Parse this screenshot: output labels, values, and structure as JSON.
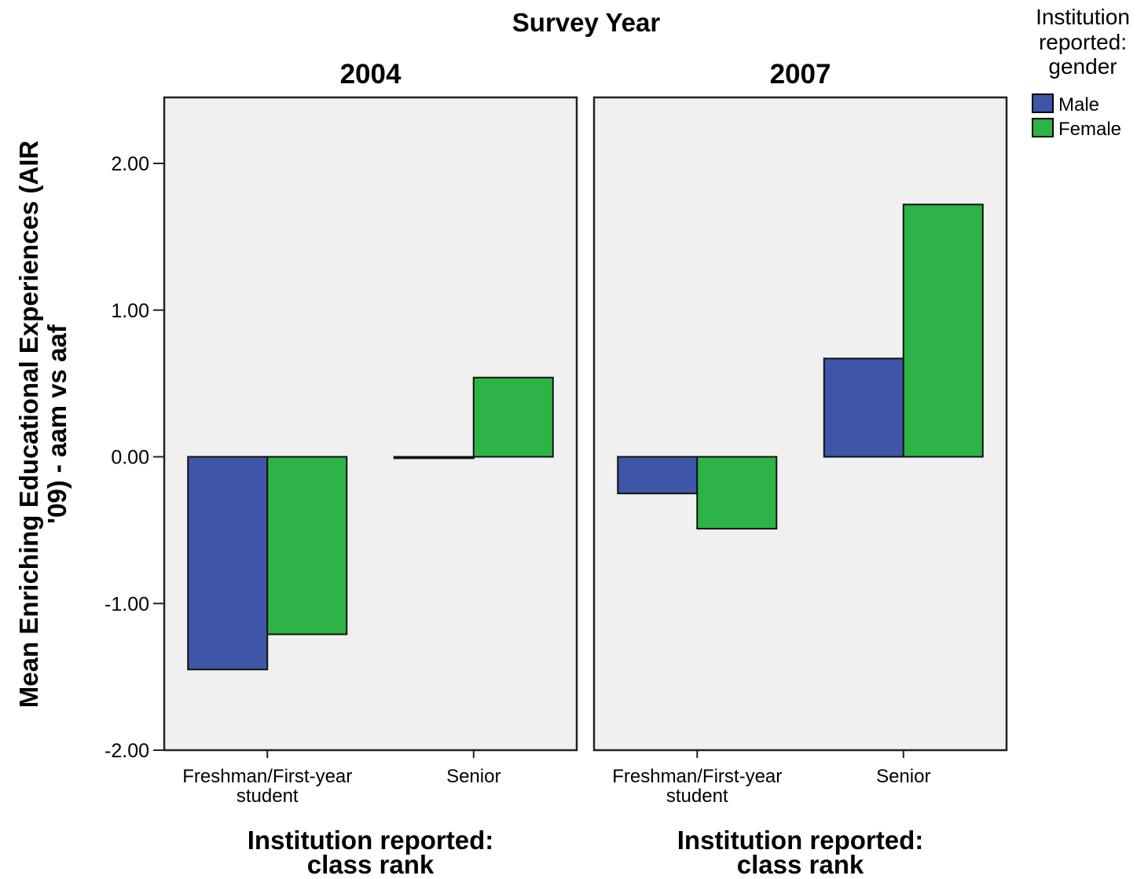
{
  "chart_data": {
    "type": "bar",
    "title": "Survey Year",
    "ylabel_line1": "Mean Enriching Educational Experiences (AIR",
    "ylabel_line2": "'09) - aam vs aaf",
    "ylim": [
      -2.0,
      2.45
    ],
    "yticks": [
      "2.00",
      "1.00",
      "0.00",
      "-1.00",
      "-2.00"
    ],
    "ytick_values": [
      2,
      1,
      0,
      -1,
      -2
    ],
    "categories": [
      [
        "Freshman/First-year",
        "student"
      ],
      [
        "Senior"
      ]
    ],
    "panels": [
      {
        "title": "2004",
        "xlabel_line1": "Institution reported:",
        "xlabel_line2": "class rank",
        "series": [
          {
            "name": "Male",
            "values": [
              -1.45,
              -0.01
            ]
          },
          {
            "name": "Female",
            "values": [
              -1.21,
              0.54
            ]
          }
        ]
      },
      {
        "title": "2007",
        "xlabel_line1": "Institution reported:",
        "xlabel_line2": "class rank",
        "series": [
          {
            "name": "Male",
            "values": [
              -0.25,
              0.67
            ]
          },
          {
            "name": "Female",
            "values": [
              -0.49,
              1.72
            ]
          }
        ]
      }
    ],
    "legend": {
      "title_lines": [
        "Institution",
        "reported:",
        "gender"
      ],
      "placement": "top-right",
      "items": [
        {
          "name": "Male",
          "color": "#3f56a8"
        },
        {
          "name": "Female",
          "color": "#2db446"
        }
      ]
    },
    "colors": {
      "Male": "#3f56a8",
      "Female": "#2db446",
      "panel_bg": "#f0f0f0"
    },
    "grid": false
  }
}
